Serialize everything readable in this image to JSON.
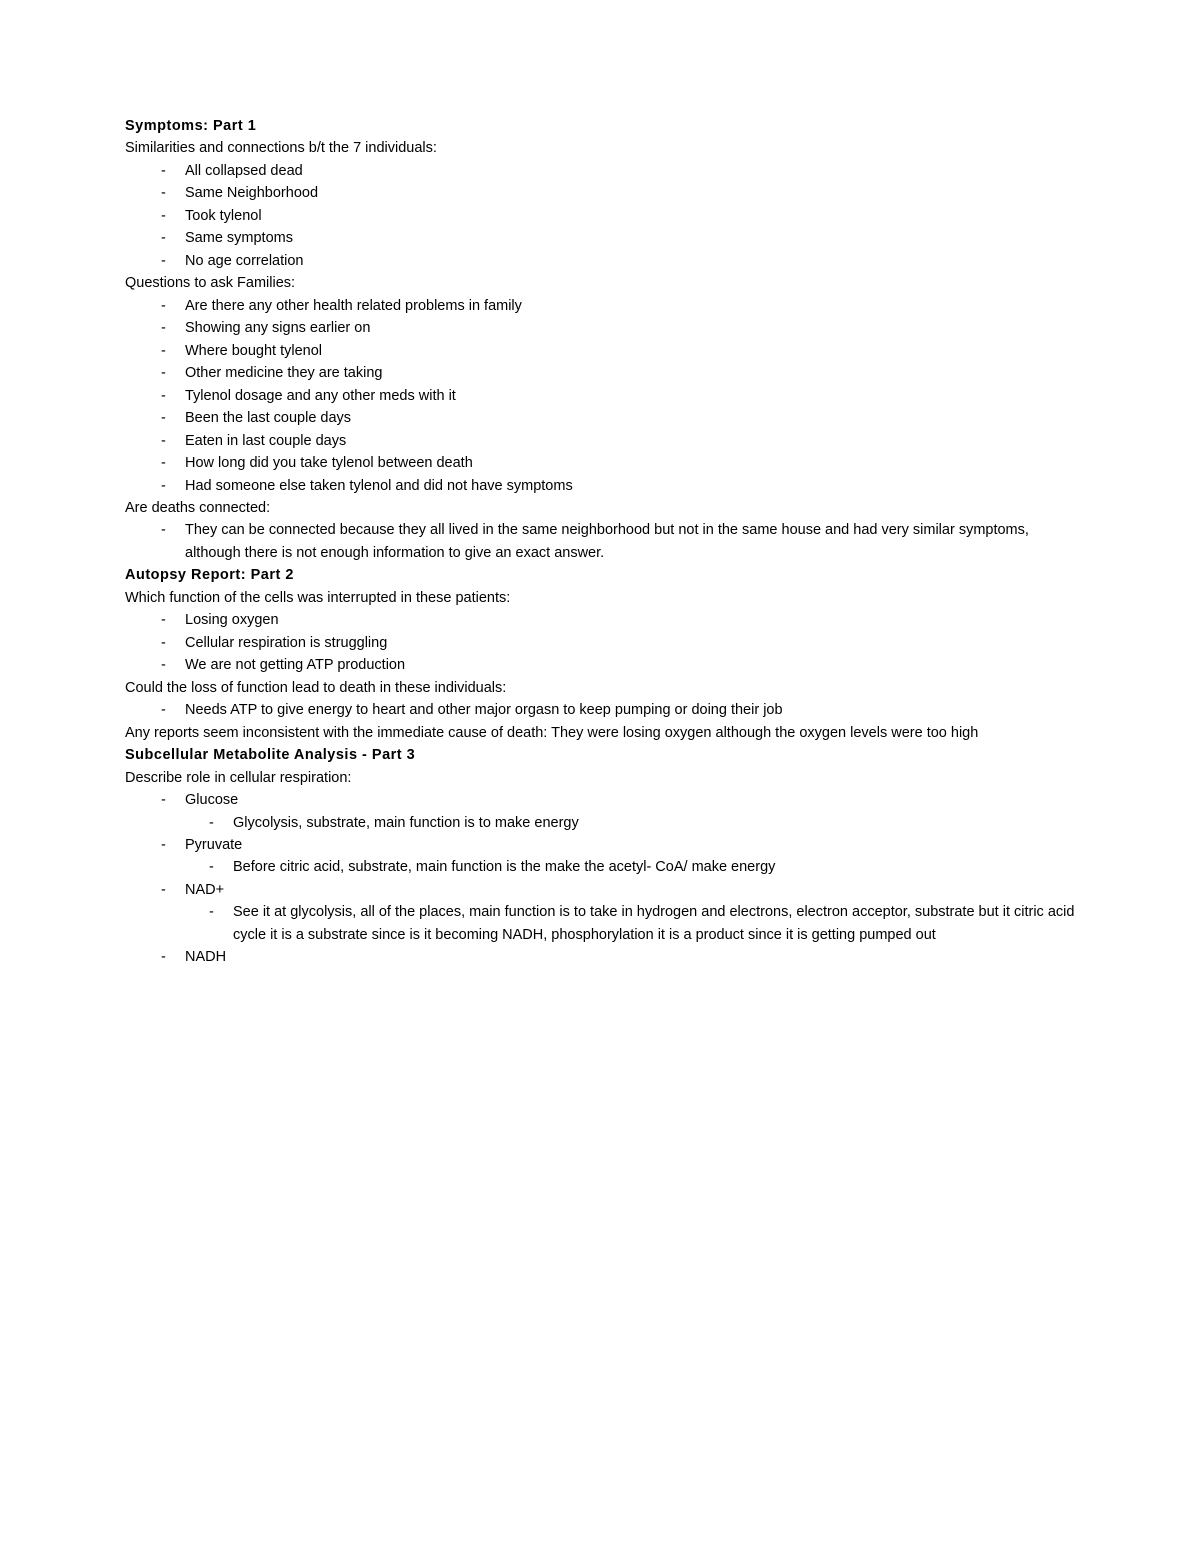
{
  "doc": {
    "font_family": "Arial",
    "font_size_pt": 11,
    "heading_weight": "bold",
    "text_color": "#000000",
    "bg_color": "#ffffff",
    "bullet_char": "-"
  },
  "sections": {
    "part1": {
      "heading": "Symptoms: Part 1",
      "similarities_label": "Similarities and connections b/t the 7 individuals:",
      "similarities": [
        "All collapsed dead",
        "Same Neighborhood",
        "Took tylenol",
        "Same symptoms",
        "No age correlation"
      ],
      "questions_label": "Questions to ask Families:",
      "questions": [
        "Are there any other health related problems in family",
        "Showing any signs earlier on",
        "Where bought tylenol",
        "Other medicine they are taking",
        "Tylenol dosage and any other meds with it",
        "Been the last couple days",
        "Eaten in last couple days",
        "How long did you take tylenol between death",
        "Had someone else taken tylenol and did not have symptoms"
      ],
      "connected_label": "Are deaths connected:",
      "connected_item": "They can be connected because they all lived in the same neighborhood but not in the same house and had very similar symptoms, although there is not enough information to give an exact answer."
    },
    "part2": {
      "heading": "Autopsy Report: Part 2",
      "function_label": "Which function of the cells was interrupted in these patients:",
      "function_items": [
        "Losing oxygen",
        "Cellular respiration is struggling",
        "We are not getting ATP production"
      ],
      "death_label": "Could the loss of function lead to death in these individuals:",
      "death_item": "Needs ATP to give energy to heart and other major orgasn to keep pumping or doing their job",
      "inconsistent": "Any reports seem inconsistent with the immediate cause of death: They were losing oxygen although the oxygen levels were too high"
    },
    "part3": {
      "heading": "Subcellular Metabolite Analysis - Part 3",
      "role_label": "Describe role in cellular respiration:",
      "glucose": "Glucose",
      "glucose_desc": "Glycolysis, substrate, main function is to make energy",
      "pyruvate": "Pyruvate",
      "pyruvate_desc": "Before citric acid, substrate, main function is the make the acetyl- CoA/ make energy",
      "nad": "NAD+",
      "nad_desc": "See it at glycolysis, all of the places, main function is to take in hydrogen and electrons, electron acceptor, substrate  but it citric acid cycle it is a substrate since is it becoming NADH, phosphorylation it is a product since it is getting pumped out",
      "nadh": "NADH"
    }
  }
}
